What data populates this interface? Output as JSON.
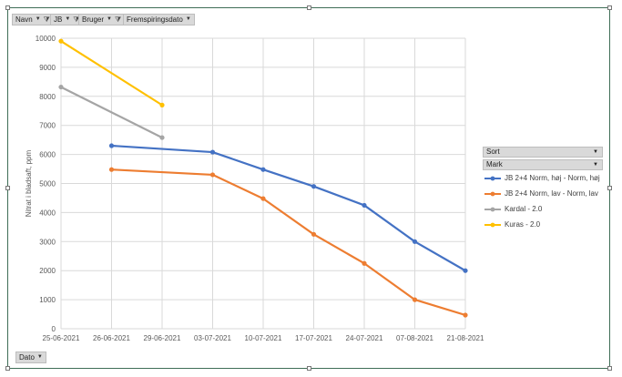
{
  "filters": {
    "navn": "Navn",
    "jb": "JB",
    "bruger": "Bruger",
    "fremspiringsdato": "Fremspiringsdato",
    "dato": "Dato"
  },
  "legend_fields": {
    "sort": "Sort",
    "mark": "Mark"
  },
  "chart_data": {
    "type": "line",
    "title": "",
    "xlabel": "",
    "ylabel": "Nitrat i bladsaft, ppm",
    "ylim": [
      0,
      10000
    ],
    "yticks": [
      "0",
      "1000",
      "2000",
      "3000",
      "4000",
      "5000",
      "6000",
      "7000",
      "8000",
      "9000",
      "10000"
    ],
    "categories": [
      "25-06-2021",
      "26-06-2021",
      "29-06-2021",
      "03-07-2021",
      "10-07-2021",
      "17-07-2021",
      "24-07-2021",
      "07-08-2021",
      "21-08-2021"
    ],
    "grid": true,
    "legend_position": "right",
    "series": [
      {
        "name": "JB 2+4 Norm, høj - Norm, høj",
        "color": "#4472c4",
        "values": [
          null,
          6300,
          null,
          6080,
          5480,
          4900,
          4250,
          3000,
          2000
        ]
      },
      {
        "name": "JB 2+4 Norm, lav - Norm, lav",
        "color": "#ed7d31",
        "values": [
          null,
          5480,
          null,
          5300,
          4480,
          3250,
          2250,
          1000,
          470
        ]
      },
      {
        "name": "Kardal - 2.0",
        "color": "#a5a5a5",
        "values": [
          8320,
          null,
          6580,
          null,
          null,
          null,
          null,
          null,
          null
        ]
      },
      {
        "name": "Kuras - 2.0",
        "color": "#ffc000",
        "values": [
          9900,
          null,
          7700,
          null,
          null,
          null,
          null,
          null,
          null
        ]
      }
    ]
  }
}
